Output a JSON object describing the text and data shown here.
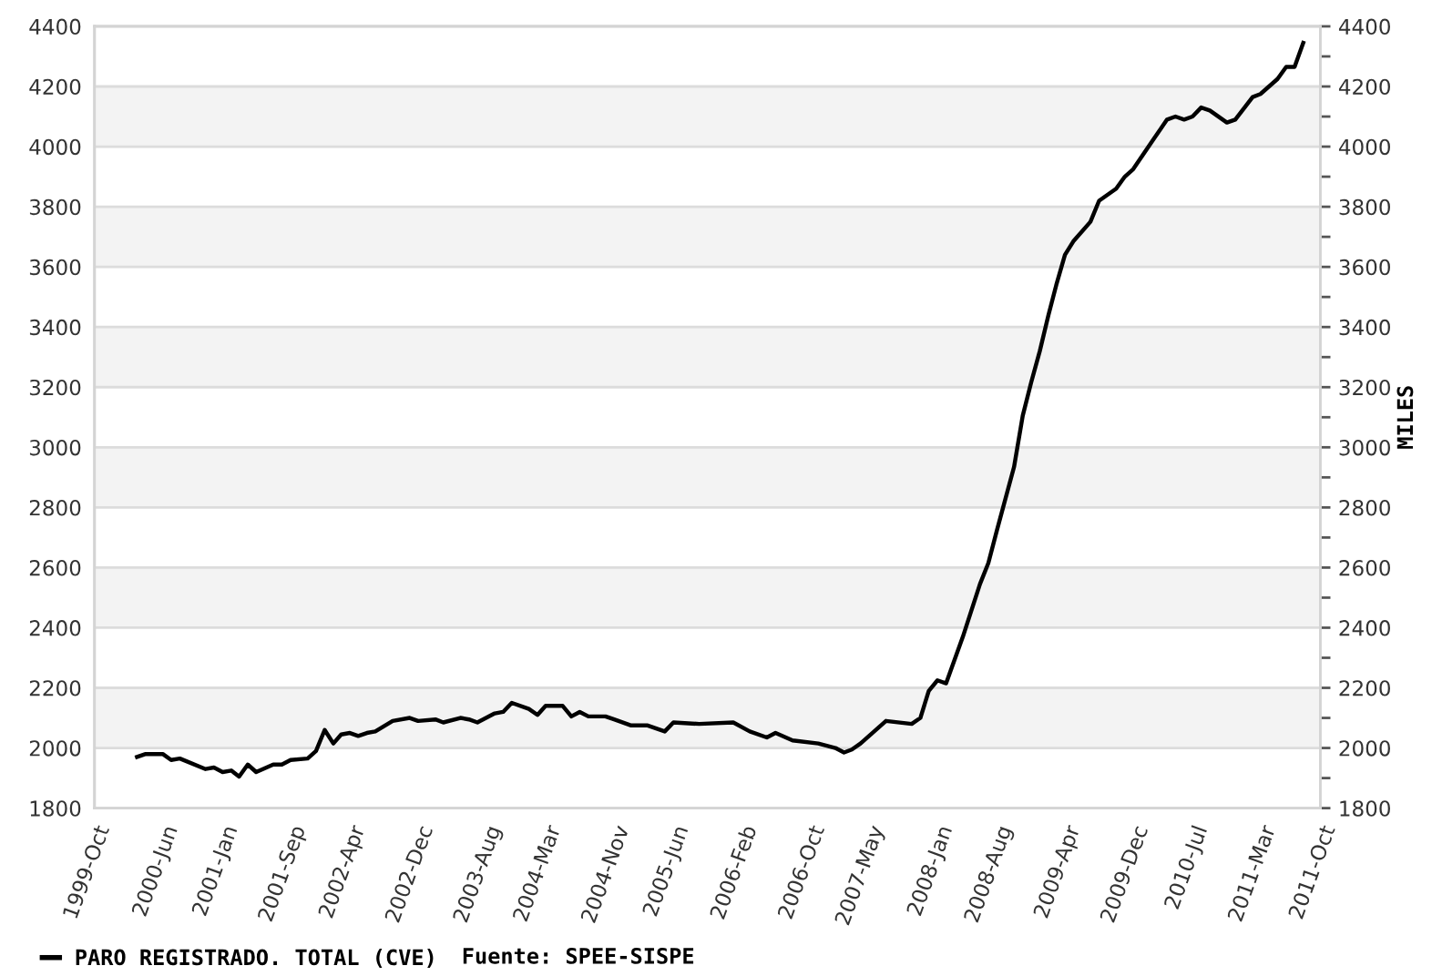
{
  "chart_data": {
    "type": "line",
    "x": [
      "2000-03",
      "2000-04",
      "2000-06",
      "2000-07",
      "2000-08",
      "2000-11",
      "2000-12",
      "2001-01",
      "2001-02",
      "2001-03",
      "2001-04",
      "2001-05",
      "2001-07",
      "2001-08",
      "2001-09",
      "2001-11",
      "2001-12",
      "2002-01",
      "2002-02",
      "2002-03",
      "2002-04",
      "2002-05",
      "2002-06",
      "2002-07",
      "2002-09",
      "2002-11",
      "2002-12",
      "2003-02",
      "2003-03",
      "2003-05",
      "2003-06",
      "2003-07",
      "2003-09",
      "2003-10",
      "2003-11",
      "2004-01",
      "2004-02",
      "2004-03",
      "2004-05",
      "2004-06",
      "2004-07",
      "2004-08",
      "2004-10",
      "2004-11",
      "2005-01",
      "2005-03",
      "2005-05",
      "2005-06",
      "2005-09",
      "2006-01",
      "2006-03",
      "2006-05",
      "2006-06",
      "2006-08",
      "2006-11",
      "2007-01",
      "2007-02",
      "2007-03",
      "2007-04",
      "2007-07",
      "2007-10",
      "2007-11",
      "2007-12",
      "2008-01",
      "2008-02",
      "2008-04",
      "2008-06",
      "2008-07",
      "2008-08",
      "2008-10",
      "2008-11",
      "2008-12",
      "2009-01",
      "2009-02",
      "2009-03",
      "2009-04",
      "2009-05",
      "2009-07",
      "2009-08",
      "2009-10",
      "2009-11",
      "2009-12",
      "2010-02",
      "2010-04",
      "2010-05",
      "2010-06",
      "2010-07",
      "2010-08",
      "2010-09",
      "2010-11",
      "2010-12",
      "2011-02",
      "2011-03",
      "2011-05",
      "2011-06",
      "2011-07",
      "2011-08"
    ],
    "series": [
      {
        "name": "PARO REGISTRADO. TOTAL (CVE)",
        "color": "#000000",
        "values": [
          1970,
          1980,
          1980,
          1960,
          1965,
          1930,
          1935,
          1920,
          1925,
          1905,
          1945,
          1920,
          1945,
          1945,
          1960,
          1965,
          1990,
          2060,
          2015,
          2045,
          2050,
          2040,
          2050,
          2055,
          2090,
          2100,
          2090,
          2095,
          2085,
          2100,
          2095,
          2085,
          2115,
          2120,
          2150,
          2130,
          2110,
          2140,
          2140,
          2105,
          2120,
          2105,
          2105,
          2095,
          2075,
          2075,
          2055,
          2085,
          2080,
          2085,
          2055,
          2035,
          2050,
          2025,
          2015,
          2000,
          1985,
          1995,
          2015,
          2090,
          2080,
          2100,
          2190,
          2225,
          2215,
          2370,
          2545,
          2615,
          2725,
          2935,
          3105,
          3215,
          3320,
          3440,
          3540,
          3640,
          3685,
          3750,
          3820,
          3860,
          3900,
          3925,
          4010,
          4090,
          4100,
          4090,
          4100,
          4130,
          4120,
          4080,
          4090,
          4165,
          4175,
          4225,
          4265,
          4265,
          4345
        ]
      }
    ],
    "y2label": "MILES",
    "annotations": [
      "Fuente: SPEE-SISPE"
    ],
    "xlim": [
      "1999-10",
      "2011-10"
    ],
    "xticks": [
      {
        "value": "1999-10",
        "label": "1999-Oct"
      },
      {
        "value": "2000-06",
        "label": "2000-Jun"
      },
      {
        "value": "2001-01",
        "label": "2001-Jan"
      },
      {
        "value": "2001-09",
        "label": "2001-Sep"
      },
      {
        "value": "2002-04",
        "label": "2002-Apr"
      },
      {
        "value": "2002-12",
        "label": "2002-Dec"
      },
      {
        "value": "2003-08",
        "label": "2003-Aug"
      },
      {
        "value": "2004-03",
        "label": "2004-Mar"
      },
      {
        "value": "2004-11",
        "label": "2004-Nov"
      },
      {
        "value": "2005-06",
        "label": "2005-Jun"
      },
      {
        "value": "2006-02",
        "label": "2006-Feb"
      },
      {
        "value": "2006-10",
        "label": "2006-Oct"
      },
      {
        "value": "2007-05",
        "label": "2007-May"
      },
      {
        "value": "2008-01",
        "label": "2008-Jan"
      },
      {
        "value": "2008-08",
        "label": "2008-Aug"
      },
      {
        "value": "2009-04",
        "label": "2009-Apr"
      },
      {
        "value": "2009-12",
        "label": "2009-Dec"
      },
      {
        "value": "2010-07",
        "label": "2010-Jul"
      },
      {
        "value": "2011-03",
        "label": "2011-Mar"
      },
      {
        "value": "2011-10",
        "label": "2011-Oct"
      }
    ],
    "ylim": [
      1800,
      4400
    ],
    "yticks": [
      1800,
      2000,
      2200,
      2400,
      2600,
      2800,
      3000,
      3200,
      3400,
      3600,
      3800,
      4000,
      4200,
      4400
    ],
    "y2lim": [
      1800,
      4400
    ],
    "y2ticks": [
      1800,
      {
        "value": 1900,
        "label": null
      },
      2000,
      {
        "value": 2100,
        "label": null
      },
      2200,
      {
        "value": 2300,
        "label": null
      },
      2400,
      {
        "value": 2500,
        "label": null
      },
      2600,
      {
        "value": 2700,
        "label": null
      },
      2800,
      {
        "value": 2900,
        "label": null
      },
      3000,
      {
        "value": 3100,
        "label": null
      },
      3200,
      {
        "value": 3300,
        "label": null
      },
      3400,
      {
        "value": 3500,
        "label": null
      },
      3600,
      {
        "value": 3700,
        "label": null
      },
      3800,
      {
        "value": 3900,
        "label": null
      },
      4000,
      {
        "value": 4100,
        "label": null
      },
      4200,
      {
        "value": 4300,
        "label": null
      },
      4400
    ],
    "bands": [
      {
        "axis": "y",
        "from": 2000,
        "to": 2200,
        "color": "#f3f3f3"
      },
      {
        "axis": "y",
        "from": 2400,
        "to": 2600,
        "color": "#f3f3f3"
      },
      {
        "axis": "y",
        "from": 2800,
        "to": 3000,
        "color": "#f3f3f3"
      },
      {
        "axis": "y",
        "from": 3200,
        "to": 3400,
        "color": "#f3f3f3"
      },
      {
        "axis": "y",
        "from": 3600,
        "to": 3800,
        "color": "#f3f3f3"
      },
      {
        "axis": "y",
        "from": 4000,
        "to": 4200,
        "color": "#f3f3f3"
      }
    ],
    "grid": "y",
    "legend": "bottom left"
  }
}
